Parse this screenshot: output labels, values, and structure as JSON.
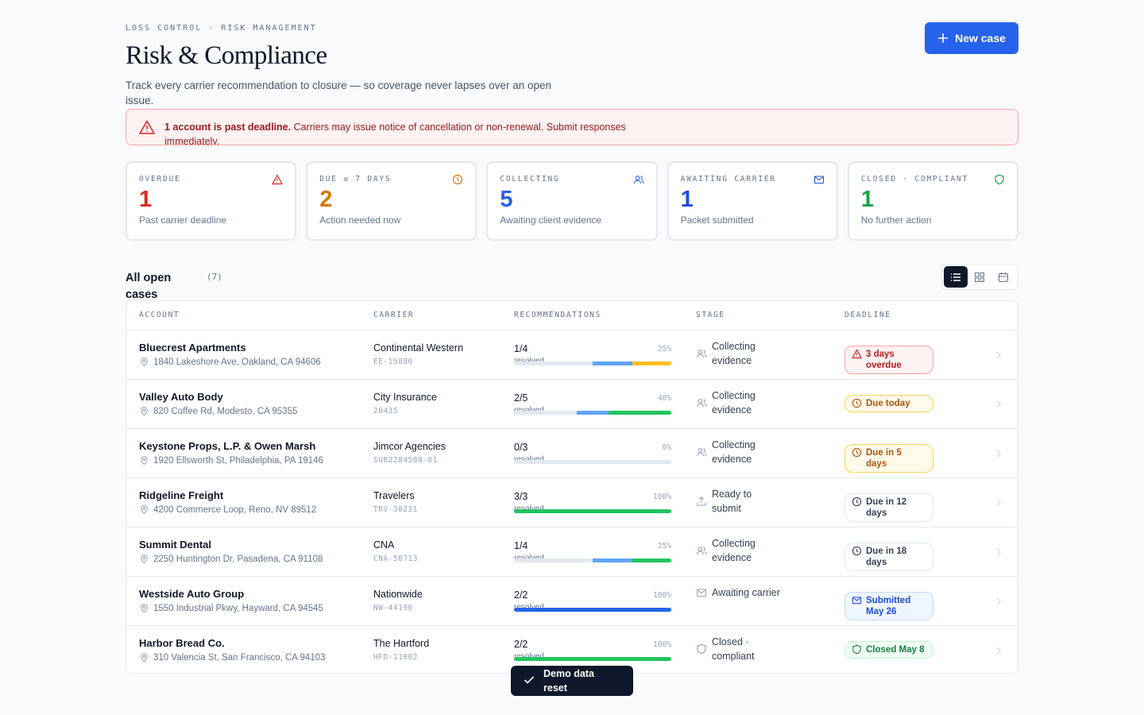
{
  "header": {
    "eyebrow": "LOSS CONTROL · RISK MANAGEMENT",
    "title": "Risk & Compliance",
    "subtitle": "Track every carrier recommendation to closure — so coverage never lapses over an open issue.",
    "button": "New case"
  },
  "alert": {
    "strong": "1 account is past deadline.",
    "text": "Carriers may issue notice of cancellation or non-renewal. Submit responses immediately."
  },
  "stats": [
    {
      "label": "OVERDUE",
      "value": "1",
      "note": "Past carrier deadline",
      "color": "#dc2626",
      "icon": "warn"
    },
    {
      "label": "DUE ≤ 7 DAYS",
      "value": "2",
      "note": "Action needed now",
      "color": "#d97706",
      "icon": "clock"
    },
    {
      "label": "COLLECTING",
      "value": "5",
      "note": "Awaiting client evidence",
      "color": "#2563eb",
      "icon": "people"
    },
    {
      "label": "AWAITING CARRIER",
      "value": "1",
      "note": "Packet submitted",
      "color": "#1d4ed8",
      "icon": "mail"
    },
    {
      "label": "CLOSED · COMPLIANT",
      "value": "1",
      "note": "No further action",
      "color": "#16a34a",
      "icon": "shield"
    }
  ],
  "cases": {
    "title": "All open cases",
    "count": "(7)"
  },
  "table": {
    "columns": [
      "ACCOUNT",
      "CARRIER",
      "RECOMMENDATIONS",
      "STAGE",
      "DEADLINE"
    ],
    "progress_caption": "resolved",
    "rows": [
      {
        "account": "Bluecrest Apartments",
        "address": "1840 Lakeshore Ave, Oakland, CA 94606",
        "carrier": "Continental Western",
        "carrier_id": "EE-19880",
        "recs": "1/4",
        "percent": "25%",
        "segments": [
          "#e2e8f0",
          "#e2e8f0",
          "#60a5fa",
          "#fbbf24"
        ],
        "stage": "Collecting evidence",
        "deadline": "3 days overdue",
        "tone": "red"
      },
      {
        "account": "Valley Auto Body",
        "address": "820 Coffee Rd, Modesto, CA 95355",
        "carrier": "City Insurance",
        "carrier_id": "20435",
        "recs": "2/5",
        "percent": "40%",
        "segments": [
          "#e2e8f0",
          "#e2e8f0",
          "#60a5fa",
          "#22c55e",
          "#22c55e"
        ],
        "stage": "Collecting evidence",
        "deadline": "Due today",
        "tone": "amber"
      },
      {
        "account": "Keystone Props, L.P. & Owen Marsh",
        "address": "1920 Ellsworth St, Philadelphia, PA 19146",
        "carrier": "Jimcor Agencies",
        "carrier_id": "SUB2284588-01",
        "recs": "0/3",
        "percent": "0%",
        "segments": [
          "#e2e8f0",
          "#e2e8f0",
          "#e2e8f0"
        ],
        "stage": "Collecting evidence",
        "deadline": "Due in 5 days",
        "tone": "amber"
      },
      {
        "account": "Ridgeline Freight",
        "address": "4200 Commerce Loop, Reno, NV 89512",
        "carrier": "Travelers",
        "carrier_id": "TRV-30221",
        "recs": "3/3",
        "percent": "100%",
        "segments": [
          "#22c55e",
          "#22c55e",
          "#22c55e"
        ],
        "stage": "Ready to submit",
        "deadline": "Due in 12 days",
        "tone": "gray"
      },
      {
        "account": "Summit Dental",
        "address": "2250 Huntington Dr, Pasadena, CA 91108",
        "carrier": "CNA",
        "carrier_id": "CNA-50713",
        "recs": "1/4",
        "percent": "25%",
        "segments": [
          "#e2e8f0",
          "#e2e8f0",
          "#60a5fa",
          "#22c55e"
        ],
        "stage": "Collecting evidence",
        "deadline": "Due in 18 days",
        "tone": "gray"
      },
      {
        "account": "Westside Auto Group",
        "address": "1550 Industrial Pkwy, Hayward, CA 94545",
        "carrier": "Nationwide",
        "carrier_id": "NW-44190",
        "recs": "2/2",
        "percent": "100%",
        "segments": [
          "#2563eb",
          "#2563eb"
        ],
        "stage": "Awaiting carrier",
        "deadline": "Submitted May 26",
        "tone": "blue"
      },
      {
        "account": "Harbor Bread Co.",
        "address": "310 Valencia St, San Francisco, CA 94103",
        "carrier": "The Hartford",
        "carrier_id": "HFD-11002",
        "recs": "2/2",
        "percent": "100%",
        "segments": [
          "#22c55e",
          "#22c55e"
        ],
        "stage": "Closed · compliant",
        "deadline": "Closed May 8",
        "tone": "green"
      }
    ]
  },
  "toast": "Demo data reset"
}
